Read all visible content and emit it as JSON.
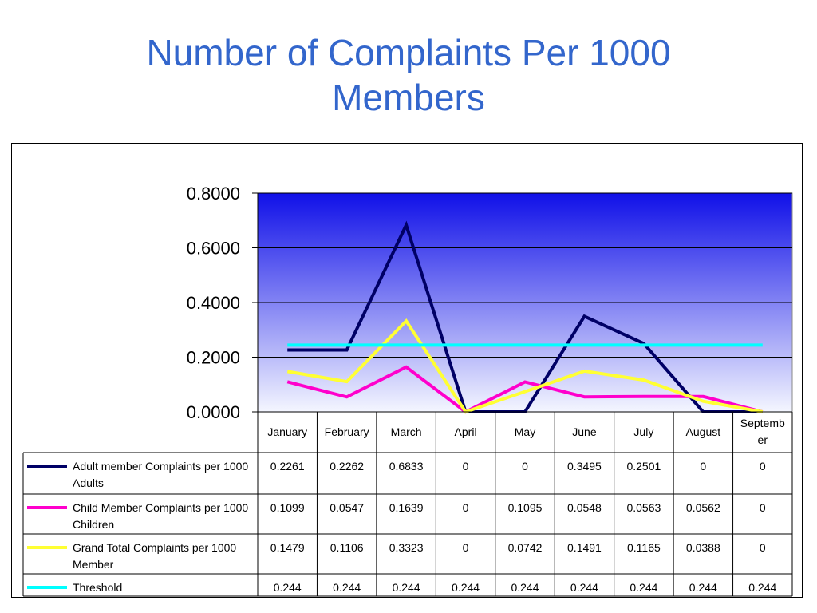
{
  "slide": {
    "title_line1": "Number of Complaints Per 1000",
    "title_line2": "Members"
  },
  "colors": {
    "title": "#3366cc",
    "plot_top": "#1010e8",
    "plot_bottom": "#f4f6ff"
  },
  "chart_data": {
    "type": "line",
    "title": "",
    "xlabel": "",
    "ylabel": "",
    "ylim": [
      0,
      0.8
    ],
    "yticks": [
      "0.8000",
      "0.6000",
      "0.4000",
      "0.2000",
      "0.0000"
    ],
    "ytick_values": [
      0.8,
      0.6,
      0.4,
      0.2,
      0.0
    ],
    "grid": true,
    "legend": "data-table-below",
    "categories": [
      "January",
      "February",
      "March",
      "April",
      "May",
      "June",
      "July",
      "August",
      "September"
    ],
    "category_lines": [
      [
        "January"
      ],
      [
        "February"
      ],
      [
        "March"
      ],
      [
        "April"
      ],
      [
        "May"
      ],
      [
        "June"
      ],
      [
        "July"
      ],
      [
        "August"
      ],
      [
        "Septemb",
        "er"
      ]
    ],
    "series": [
      {
        "name": "Adult member Complaints per 1000 Adults",
        "name_lines": [
          "Adult member Complaints per 1000",
          "Adults"
        ],
        "color": "#000066",
        "values": [
          0.2261,
          0.2262,
          0.6833,
          0,
          0,
          0.3495,
          0.2501,
          0,
          0
        ],
        "labels": [
          "0.2261",
          "0.2262",
          "0.6833",
          "0",
          "0",
          "0.3495",
          "0.2501",
          "0",
          "0"
        ]
      },
      {
        "name": "Child Member Complaints per 1000 Children",
        "name_lines": [
          "Child Member Complaints per 1000",
          "Children"
        ],
        "color": "#ff00cc",
        "values": [
          0.1099,
          0.0547,
          0.1639,
          0,
          0.1095,
          0.0548,
          0.0563,
          0.0562,
          0
        ],
        "labels": [
          "0.1099",
          "0.0547",
          "0.1639",
          "0",
          "0.1095",
          "0.0548",
          "0.0563",
          "0.0562",
          "0"
        ]
      },
      {
        "name": "Grand Total Complaints per 1000 Member",
        "name_lines": [
          "Grand Total Complaints per 1000",
          "Member"
        ],
        "color": "#ffff33",
        "values": [
          0.1479,
          0.1106,
          0.3323,
          0,
          0.0742,
          0.1491,
          0.1165,
          0.0388,
          0
        ],
        "labels": [
          "0.1479",
          "0.1106",
          "0.3323",
          "0",
          "0.0742",
          "0.1491",
          "0.1165",
          "0.0388",
          "0"
        ]
      },
      {
        "name": "Threshold",
        "name_lines": [
          "Threshold"
        ],
        "color": "#00ffff",
        "values": [
          0.244,
          0.244,
          0.244,
          0.244,
          0.244,
          0.244,
          0.244,
          0.244,
          0.244
        ],
        "labels": [
          "0.244",
          "0.244",
          "0.244",
          "0.244",
          "0.244",
          "0.244",
          "0.244",
          "0.244",
          "0.244"
        ]
      }
    ]
  }
}
